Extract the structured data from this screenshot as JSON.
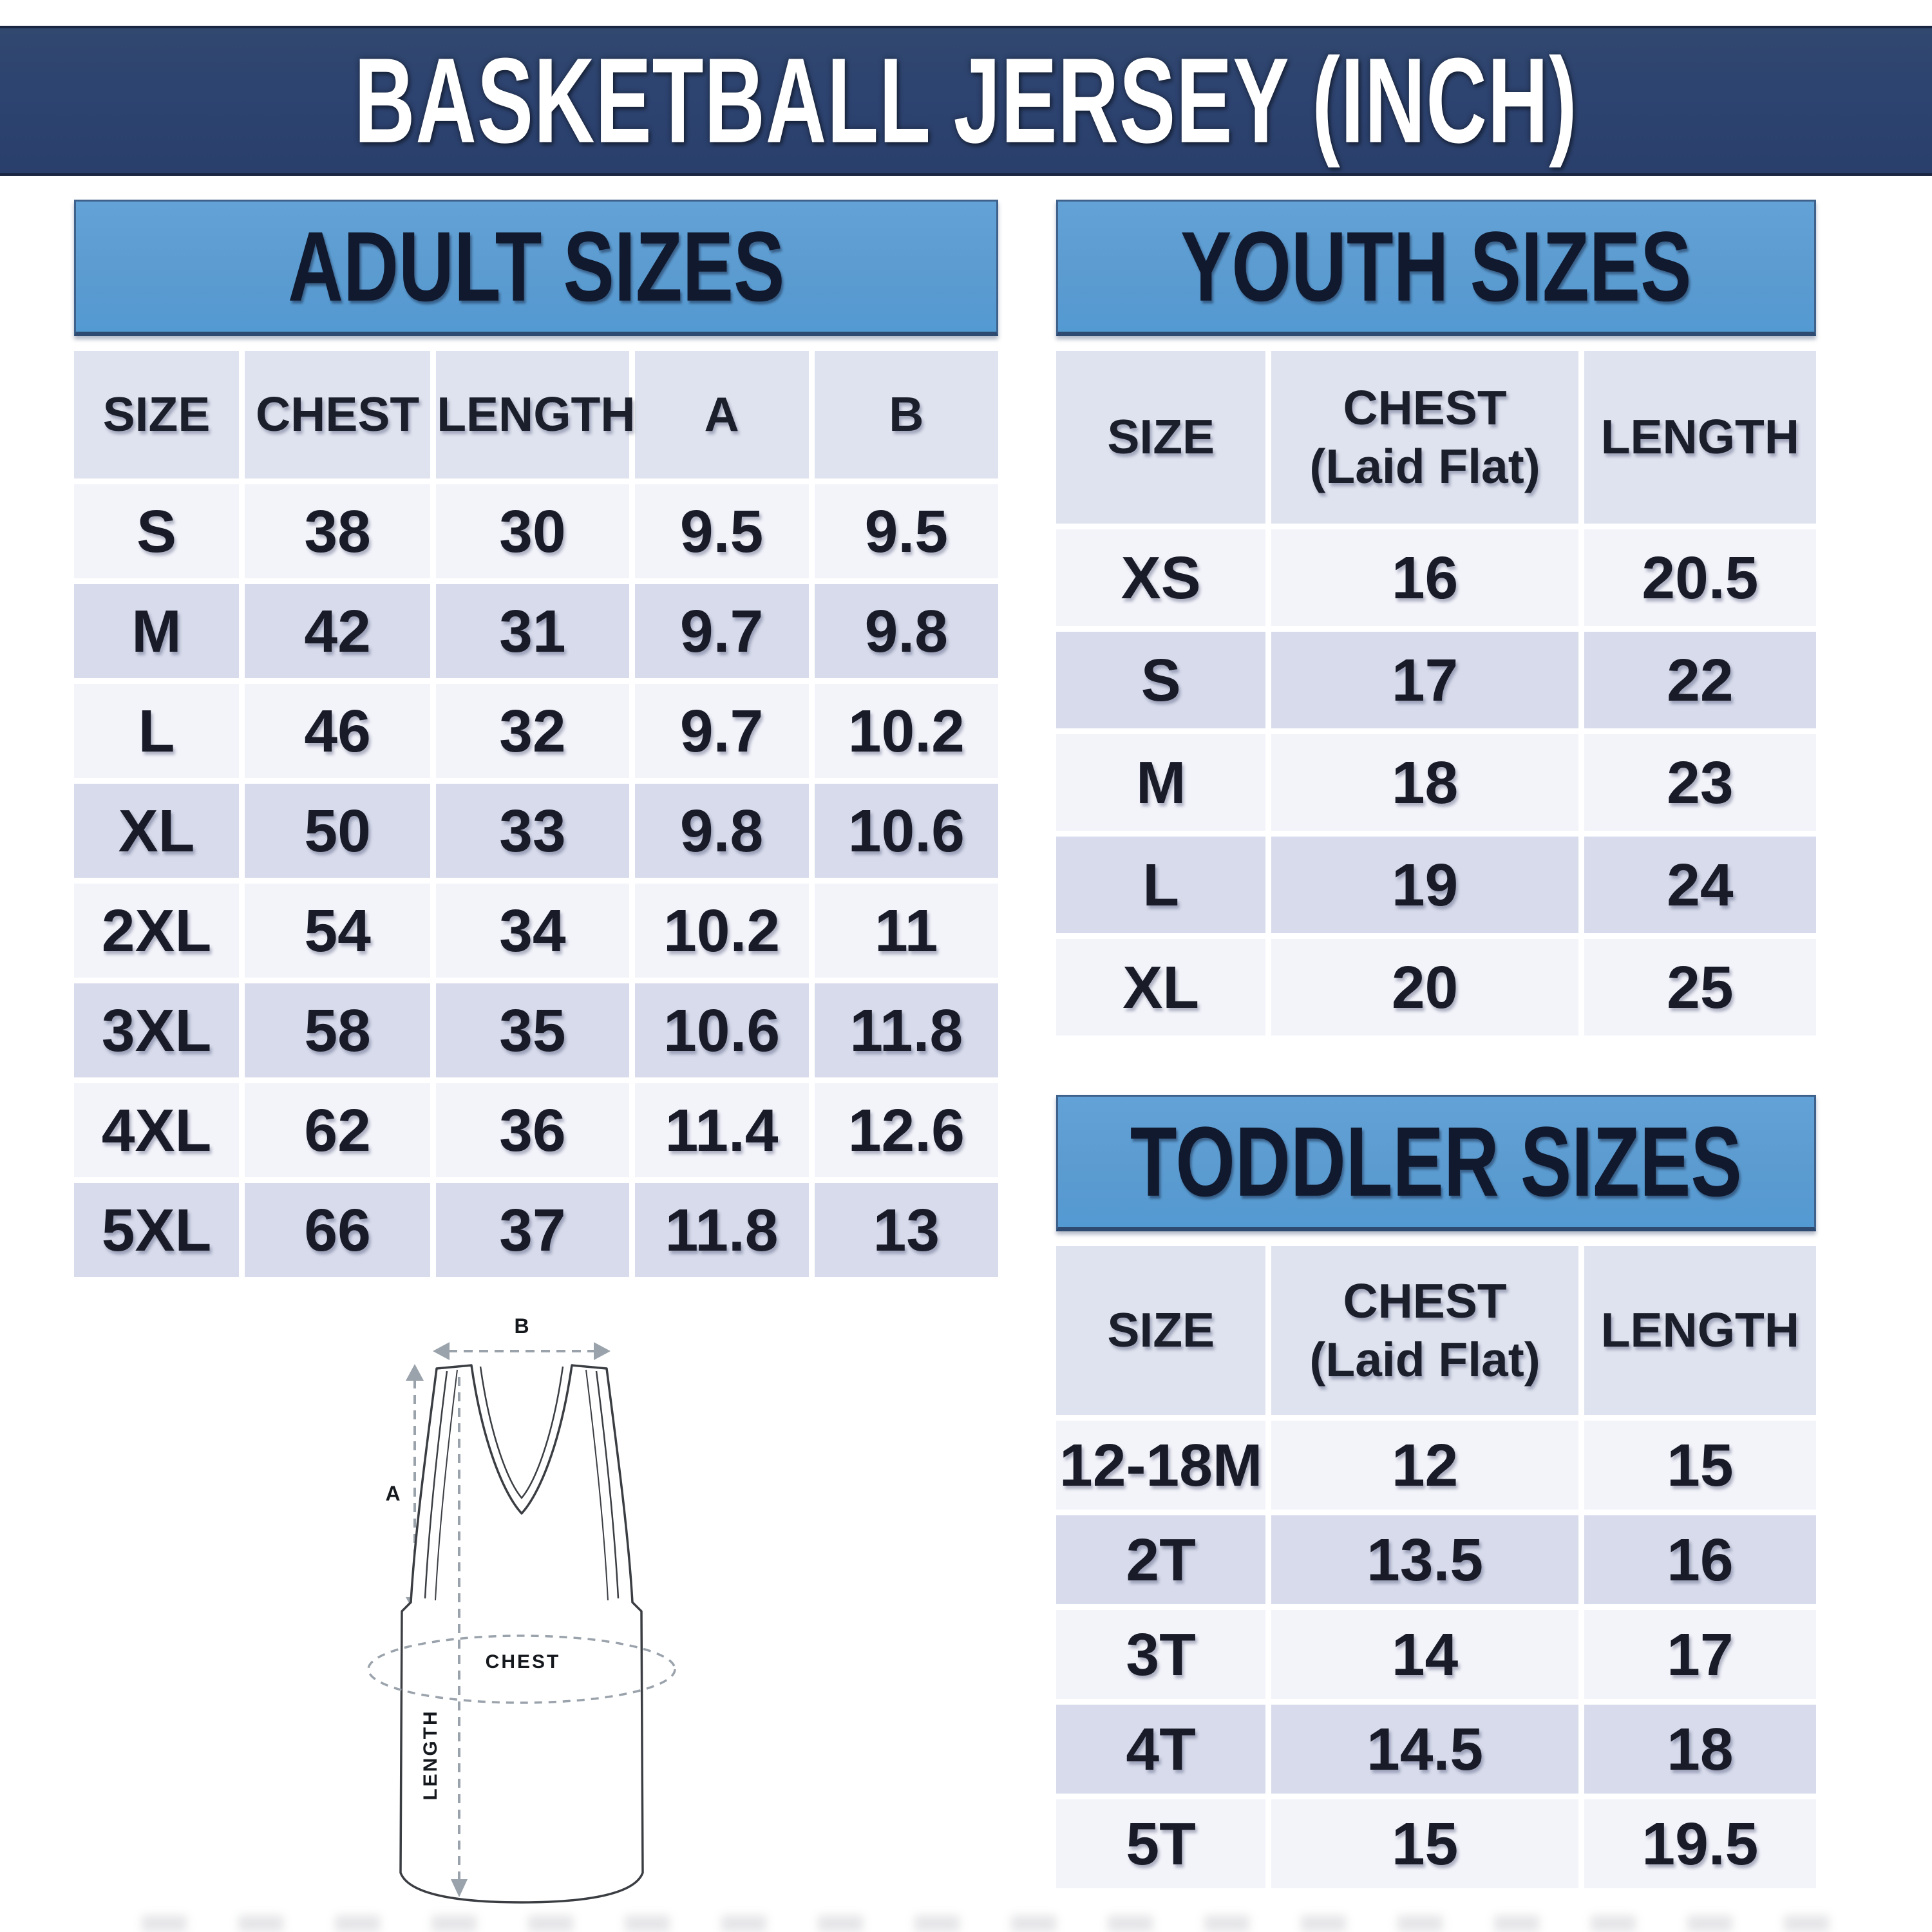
{
  "title": "BASKETBALL JERSEY (INCH)",
  "colors": {
    "title_bar_bg": "#2d4370",
    "title_text": "#ffffff",
    "section_band_bg": "#5b9bd0",
    "section_band_text": "#10192e",
    "table_header_bg": "#dfe3ef",
    "row_light_bg": "#f3f4fa",
    "row_dark_bg": "#d7dbeb",
    "cell_text": "#191c28",
    "diagram_outline": "#3a3d42",
    "diagram_arrow": "#9aa2ab"
  },
  "adult": {
    "heading": "ADULT SIZES",
    "columns": [
      "SIZE",
      "CHEST",
      "LENGTH",
      "A",
      "B"
    ],
    "rows": [
      [
        "S",
        "38",
        "30",
        "9.5",
        "9.5"
      ],
      [
        "M",
        "42",
        "31",
        "9.7",
        "9.8"
      ],
      [
        "L",
        "46",
        "32",
        "9.7",
        "10.2"
      ],
      [
        "XL",
        "50",
        "33",
        "9.8",
        "10.6"
      ],
      [
        "2XL",
        "54",
        "34",
        "10.2",
        "11"
      ],
      [
        "3XL",
        "58",
        "35",
        "10.6",
        "11.8"
      ],
      [
        "4XL",
        "62",
        "36",
        "11.4",
        "12.6"
      ],
      [
        "5XL",
        "66",
        "37",
        "11.8",
        "13"
      ]
    ]
  },
  "youth": {
    "heading": "YOUTH SIZES",
    "columns": [
      "SIZE",
      "CHEST\n(Laid Flat)",
      "LENGTH"
    ],
    "rows": [
      [
        "XS",
        "16",
        "20.5"
      ],
      [
        "S",
        "17",
        "22"
      ],
      [
        "M",
        "18",
        "23"
      ],
      [
        "L",
        "19",
        "24"
      ],
      [
        "XL",
        "20",
        "25"
      ]
    ]
  },
  "toddler": {
    "heading": "TODDLER SIZES",
    "columns": [
      "SIZE",
      "CHEST\n(Laid Flat)",
      "LENGTH"
    ],
    "rows": [
      [
        "12-18M",
        "12",
        "15"
      ],
      [
        "2T",
        "13.5",
        "16"
      ],
      [
        "3T",
        "14",
        "17"
      ],
      [
        "4T",
        "14.5",
        "18"
      ],
      [
        "5T",
        "15",
        "19.5"
      ]
    ]
  },
  "diagram": {
    "a_label": "A",
    "b_label": "B",
    "chest_label": "CHEST",
    "length_label": "LENGTH"
  }
}
